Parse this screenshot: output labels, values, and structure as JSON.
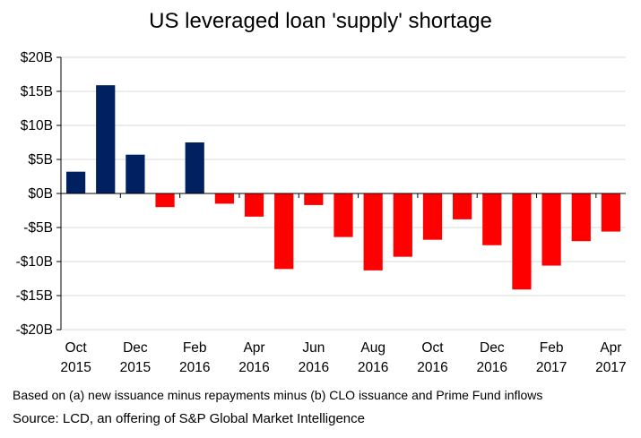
{
  "chart_data": {
    "type": "bar",
    "title": "US leveraged loan 'supply' shortage",
    "categories": [
      "Oct 2015",
      "Nov 2015",
      "Dec 2015",
      "Jan 2016",
      "Feb 2016",
      "Mar 2016",
      "Apr 2016",
      "May 2016",
      "Jun 2016",
      "Jul 2016",
      "Aug 2016",
      "Sep 2016",
      "Oct 2016",
      "Nov 2016",
      "Dec 2016",
      "Jan 2017",
      "Feb 2017",
      "Mar 2017",
      "Apr 2017"
    ],
    "values": [
      3.2,
      15.9,
      5.7,
      -2.0,
      7.5,
      -1.5,
      -3.4,
      -11.1,
      -1.7,
      -6.4,
      -11.3,
      -9.3,
      -6.8,
      -3.8,
      -7.6,
      -14.1,
      -10.6,
      -7.0,
      -5.6
    ],
    "x_tick_labels": [
      {
        "index": 0,
        "month": "Oct",
        "year": "2015"
      },
      {
        "index": 2,
        "month": "Dec",
        "year": "2015"
      },
      {
        "index": 4,
        "month": "Feb",
        "year": "2016"
      },
      {
        "index": 6,
        "month": "Apr",
        "year": "2016"
      },
      {
        "index": 8,
        "month": "Jun",
        "year": "2016"
      },
      {
        "index": 10,
        "month": "Aug",
        "year": "2016"
      },
      {
        "index": 12,
        "month": "Oct",
        "year": "2016"
      },
      {
        "index": 14,
        "month": "Dec",
        "year": "2016"
      },
      {
        "index": 16,
        "month": "Feb",
        "year": "2017"
      },
      {
        "index": 18,
        "month": "Apr",
        "year": "2017"
      }
    ],
    "y_ticks": [
      20,
      15,
      10,
      5,
      0,
      -5,
      -10,
      -15,
      -20
    ],
    "y_tick_labels": [
      "$20B",
      "$15B",
      "$10B",
      "$5B",
      "$0B",
      "-$5B",
      "-$10B",
      "-$15B",
      "-$20B"
    ],
    "ylim": [
      -20,
      20
    ],
    "xlabel": "",
    "ylabel": "",
    "grid": true,
    "legend": "none",
    "colors": {
      "positive": "#002060",
      "negative": "#ff0000",
      "grid": "#d9d9d9",
      "axis": "#000000"
    }
  },
  "footnote": "Based on (a) new issuance minus repayments minus (b) CLO issuance and Prime Fund inflows",
  "source": "Source: LCD, an offering of S&P Global Market Intelligence"
}
